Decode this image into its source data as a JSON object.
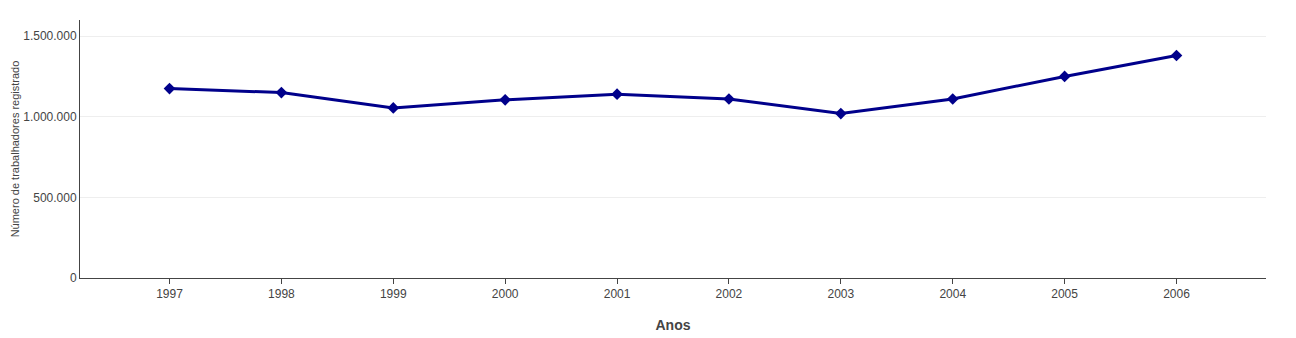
{
  "chart_data": {
    "type": "line",
    "x": [
      1997,
      1998,
      1999,
      2000,
      2001,
      2002,
      2003,
      2004,
      2005,
      2006
    ],
    "values": [
      1175000,
      1150000,
      1055000,
      1105000,
      1140000,
      1110000,
      1020000,
      1110000,
      1250000,
      1380000
    ],
    "color": "#00008B",
    "marker": "diamond",
    "xlabel": "Anos",
    "ylabel": "Número de trabalhadores registrado",
    "xlim": [
      1996.2,
      2006.8
    ],
    "xticks": [
      1997,
      1998,
      1999,
      2000,
      2001,
      2002,
      2003,
      2004,
      2005,
      2006
    ],
    "ylim": [
      0,
      1600000
    ],
    "yticks": [
      0,
      {
        "value": 500000,
        "label": "500.000"
      },
      {
        "value": 1000000,
        "label": "1.000.000"
      },
      {
        "value": 1500000,
        "label": "1.500.000"
      }
    ],
    "grid": true
  }
}
